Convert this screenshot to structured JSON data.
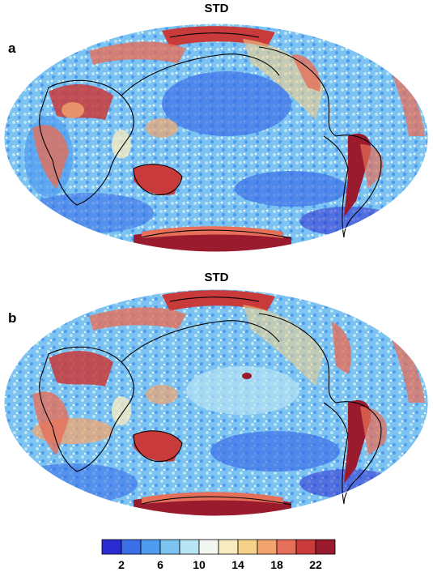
{
  "panels": [
    {
      "label": "a",
      "title": "STD"
    },
    {
      "label": "b",
      "title": "STD"
    }
  ],
  "colorbar": {
    "colors": [
      "#2b2bd2",
      "#3a6fe8",
      "#4f9bf0",
      "#7cc3f2",
      "#b8e4f4",
      "#f2f7f2",
      "#f6ecc0",
      "#f5d18a",
      "#f1a46e",
      "#e56f59",
      "#c93a3a",
      "#9b1b2e"
    ],
    "tick_labels": [
      "2",
      "6",
      "10",
      "14",
      "18",
      "22"
    ]
  }
}
